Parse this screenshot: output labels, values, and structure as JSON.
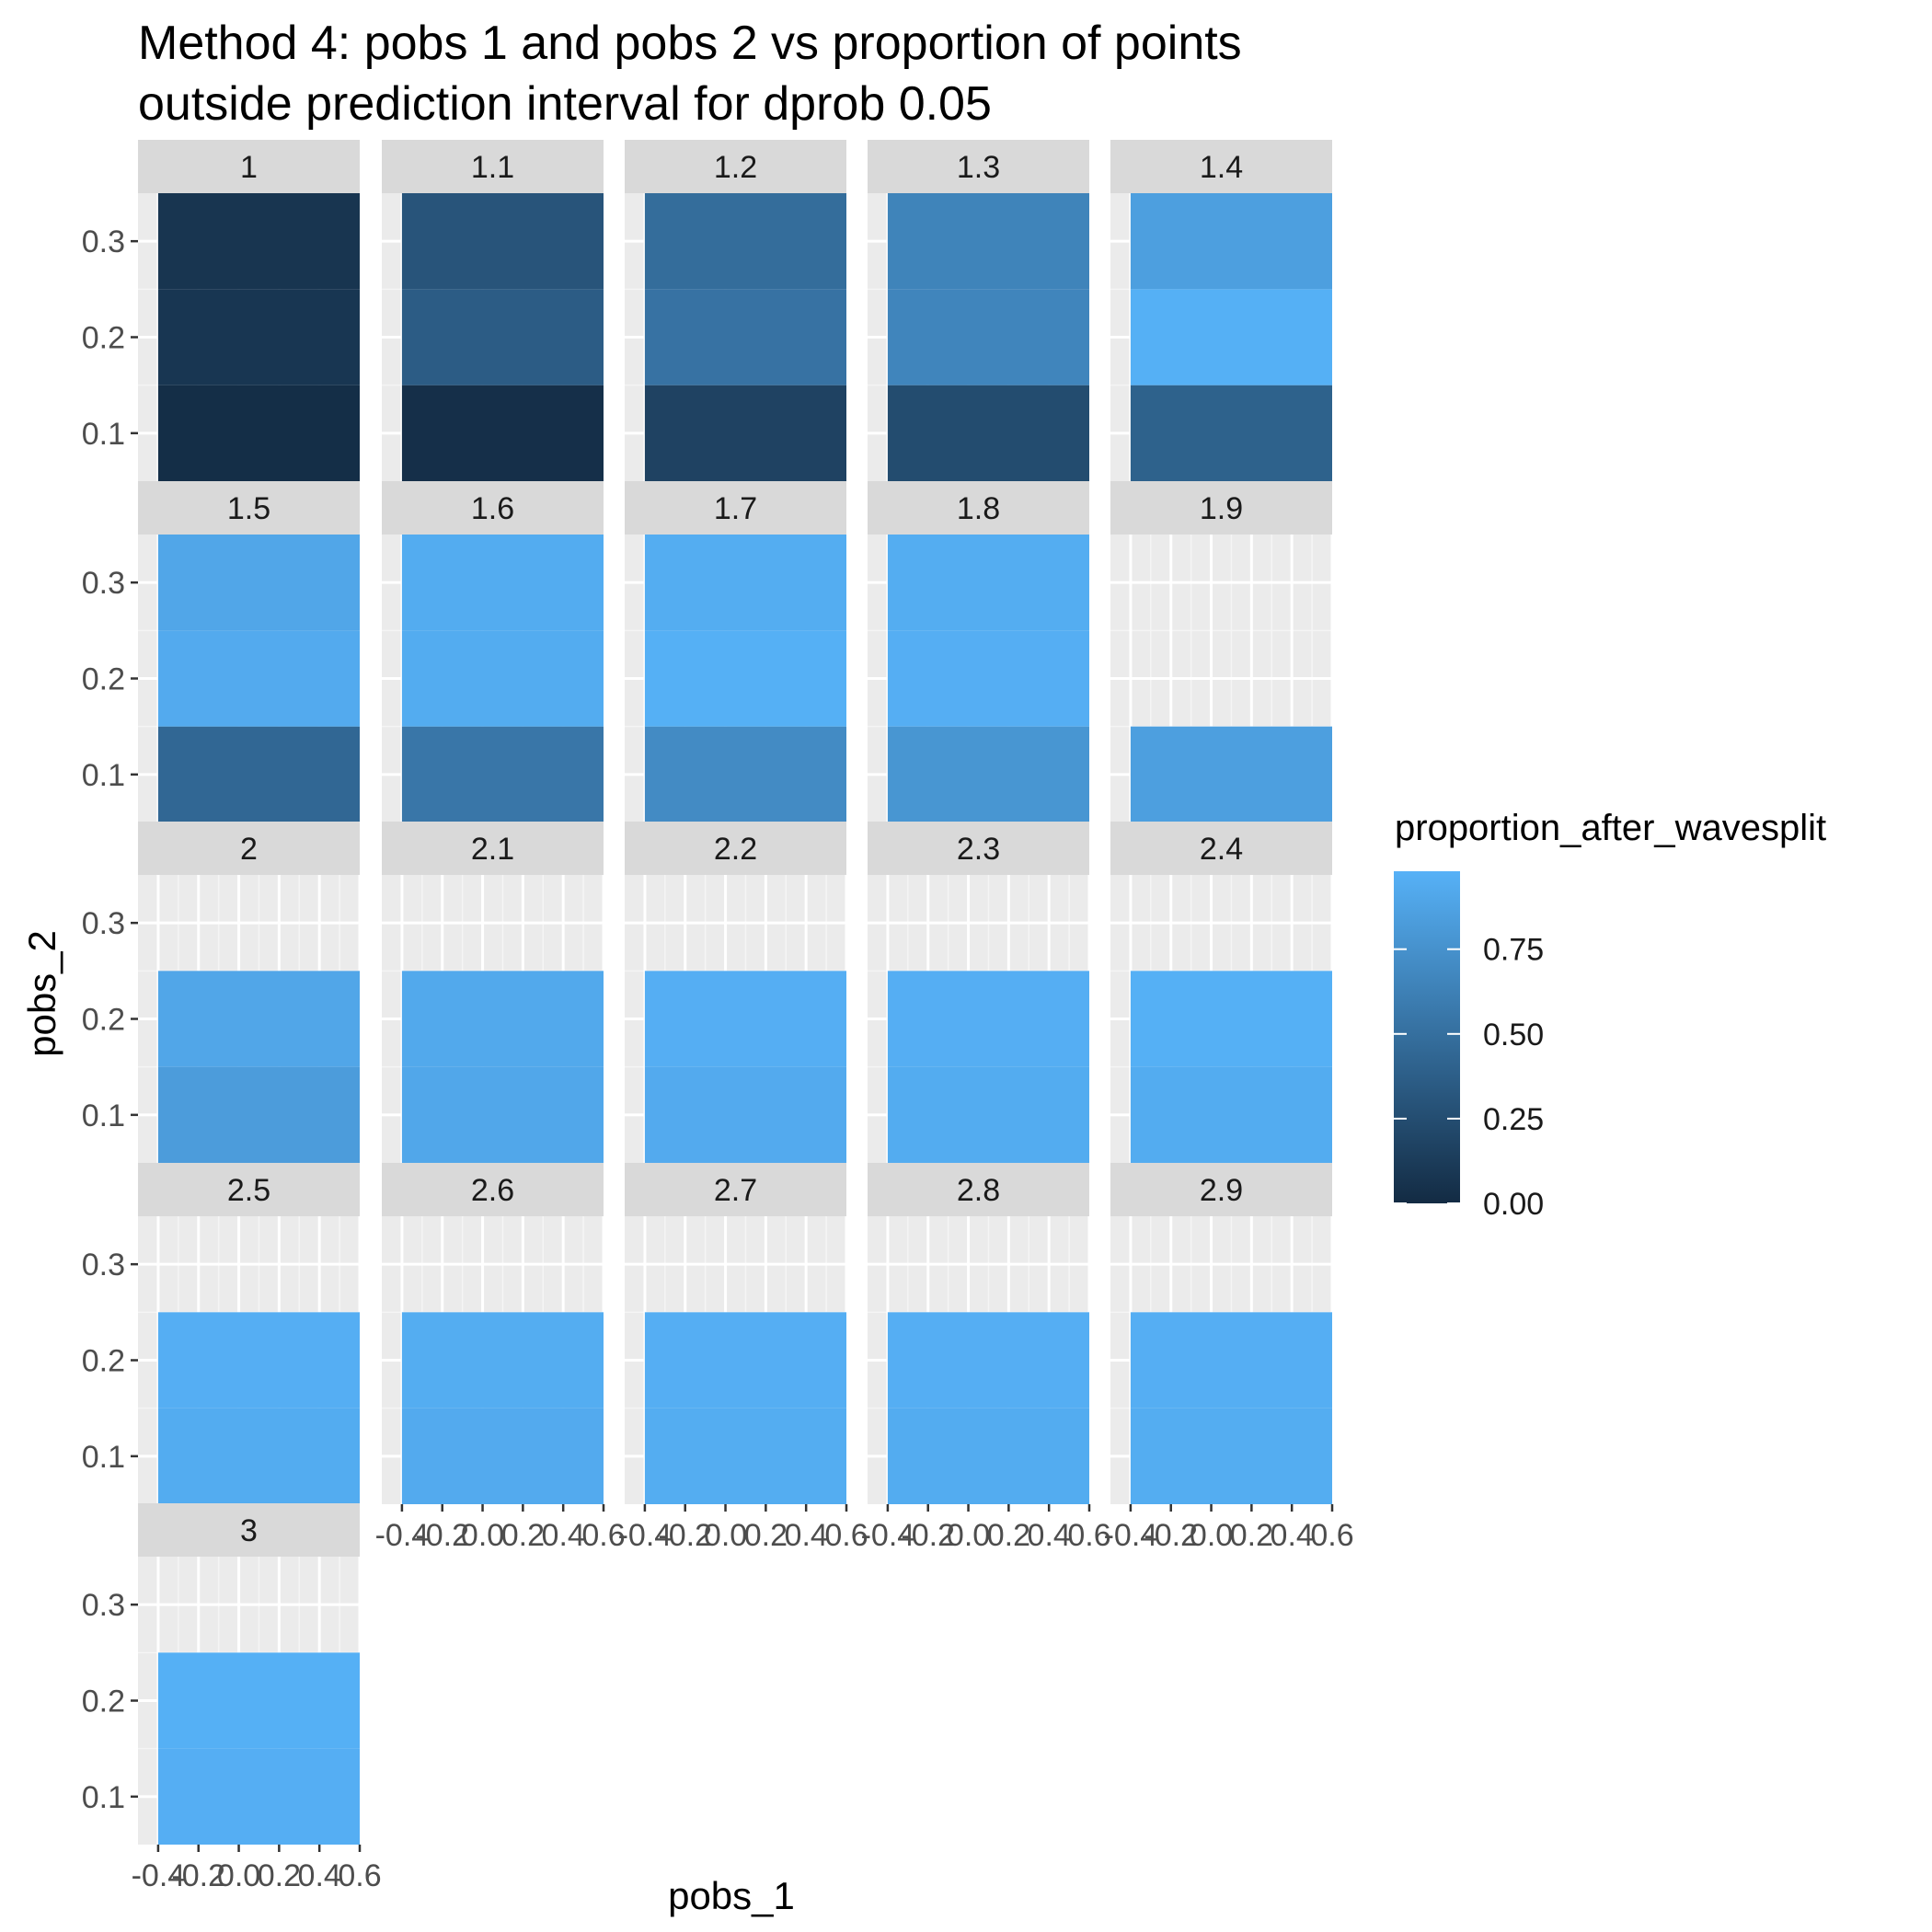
{
  "title": "Method 4: pobs 1 and pobs 2 vs proportion of points\noutside prediction interval for dprob 0.05",
  "chart_data": {
    "type": "heatmap",
    "title": "Method 4: pobs 1 and pobs 2 vs proportion of points\noutside prediction interval for dprob 0.05",
    "xlabel": "pobs_1",
    "ylabel": "pobs_2",
    "facet_variable_values": [
      "1",
      "1.1",
      "1.2",
      "1.3",
      "1.4",
      "1.5",
      "1.6",
      "1.7",
      "1.8",
      "1.9",
      "2",
      "2.1",
      "2.2",
      "2.3",
      "2.4",
      "2.5",
      "2.6",
      "2.7",
      "2.8",
      "2.9",
      "3"
    ],
    "xlim": [
      -0.5,
      0.6
    ],
    "ylim": [
      0.05,
      0.35
    ],
    "x_ticks": [
      -0.4,
      -0.2,
      0.0,
      0.2,
      0.4,
      0.6
    ],
    "x_tick_labels": [
      "-0.4",
      "-0.2",
      "0.0",
      "0.2",
      "0.4",
      "0.6"
    ],
    "y_ticks": [
      0.1,
      0.2,
      0.3
    ],
    "y_tick_labels": [
      "0.1",
      "0.2",
      "0.3"
    ],
    "tile_x_range": [
      -0.4,
      0.6
    ],
    "tile_height": 0.1,
    "grid": true,
    "facets": [
      {
        "label": "1",
        "tiles": [
          {
            "y": 0.1,
            "value": 0.02
          },
          {
            "y": 0.2,
            "value": 0.08
          },
          {
            "y": 0.3,
            "value": 0.07
          }
        ]
      },
      {
        "label": "1.1",
        "tiles": [
          {
            "y": 0.1,
            "value": 0.03
          },
          {
            "y": 0.2,
            "value": 0.36
          },
          {
            "y": 0.3,
            "value": 0.3
          }
        ]
      },
      {
        "label": "1.2",
        "tiles": [
          {
            "y": 0.1,
            "value": 0.17
          },
          {
            "y": 0.2,
            "value": 0.52
          },
          {
            "y": 0.3,
            "value": 0.48
          }
        ]
      },
      {
        "label": "1.3",
        "tiles": [
          {
            "y": 0.1,
            "value": 0.24
          },
          {
            "y": 0.2,
            "value": 0.66
          },
          {
            "y": 0.3,
            "value": 0.65
          }
        ]
      },
      {
        "label": "1.4",
        "tiles": [
          {
            "y": 0.1,
            "value": 0.4
          },
          {
            "y": 0.2,
            "value": 0.97
          },
          {
            "y": 0.3,
            "value": 0.85
          }
        ]
      },
      {
        "label": "1.5",
        "tiles": [
          {
            "y": 0.1,
            "value": 0.44
          },
          {
            "y": 0.2,
            "value": 0.93
          },
          {
            "y": 0.3,
            "value": 0.9
          }
        ]
      },
      {
        "label": "1.6",
        "tiles": [
          {
            "y": 0.1,
            "value": 0.55
          },
          {
            "y": 0.2,
            "value": 0.94
          },
          {
            "y": 0.3,
            "value": 0.94
          }
        ]
      },
      {
        "label": "1.7",
        "tiles": [
          {
            "y": 0.1,
            "value": 0.7
          },
          {
            "y": 0.2,
            "value": 0.97
          },
          {
            "y": 0.3,
            "value": 0.95
          }
        ]
      },
      {
        "label": "1.8",
        "tiles": [
          {
            "y": 0.1,
            "value": 0.78
          },
          {
            "y": 0.2,
            "value": 0.96
          },
          {
            "y": 0.3,
            "value": 0.95
          }
        ]
      },
      {
        "label": "1.9",
        "tiles": [
          {
            "y": 0.1,
            "value": 0.85
          }
        ]
      },
      {
        "label": "2",
        "tiles": [
          {
            "y": 0.1,
            "value": 0.83
          },
          {
            "y": 0.2,
            "value": 0.9
          }
        ]
      },
      {
        "label": "2.1",
        "tiles": [
          {
            "y": 0.1,
            "value": 0.91
          },
          {
            "y": 0.2,
            "value": 0.92
          }
        ]
      },
      {
        "label": "2.2",
        "tiles": [
          {
            "y": 0.1,
            "value": 0.93
          },
          {
            "y": 0.2,
            "value": 0.96
          }
        ]
      },
      {
        "label": "2.3",
        "tiles": [
          {
            "y": 0.1,
            "value": 0.94
          },
          {
            "y": 0.2,
            "value": 0.96
          }
        ]
      },
      {
        "label": "2.4",
        "tiles": [
          {
            "y": 0.1,
            "value": 0.94
          },
          {
            "y": 0.2,
            "value": 0.97
          }
        ]
      },
      {
        "label": "2.5",
        "tiles": [
          {
            "y": 0.1,
            "value": 0.94
          },
          {
            "y": 0.2,
            "value": 0.96
          }
        ]
      },
      {
        "label": "2.6",
        "tiles": [
          {
            "y": 0.1,
            "value": 0.93
          },
          {
            "y": 0.2,
            "value": 0.95
          }
        ]
      },
      {
        "label": "2.7",
        "tiles": [
          {
            "y": 0.1,
            "value": 0.95
          },
          {
            "y": 0.2,
            "value": 0.96
          }
        ]
      },
      {
        "label": "2.8",
        "tiles": [
          {
            "y": 0.1,
            "value": 0.94
          },
          {
            "y": 0.2,
            "value": 0.96
          }
        ]
      },
      {
        "label": "2.9",
        "tiles": [
          {
            "y": 0.1,
            "value": 0.95
          },
          {
            "y": 0.2,
            "value": 0.96
          }
        ]
      },
      {
        "label": "3",
        "tiles": [
          {
            "y": 0.1,
            "value": 0.96
          },
          {
            "y": 0.2,
            "value": 0.97
          }
        ]
      }
    ],
    "legend": {
      "title": "proportion_after_wavesplit",
      "placement": "right",
      "breaks": [
        0.0,
        0.25,
        0.5,
        0.75
      ],
      "break_labels": [
        "0.00",
        "0.25",
        "0.50",
        "0.75"
      ],
      "range": [
        0.0,
        0.98
      ],
      "low_color": "#132B43",
      "high_color": "#56B1F7"
    },
    "colors": {
      "panel_background": "#EBEBEB",
      "grid_major": "#FFFFFF",
      "strip_background": "#D9D9D9",
      "axis_text": "#4D4D4D"
    }
  }
}
